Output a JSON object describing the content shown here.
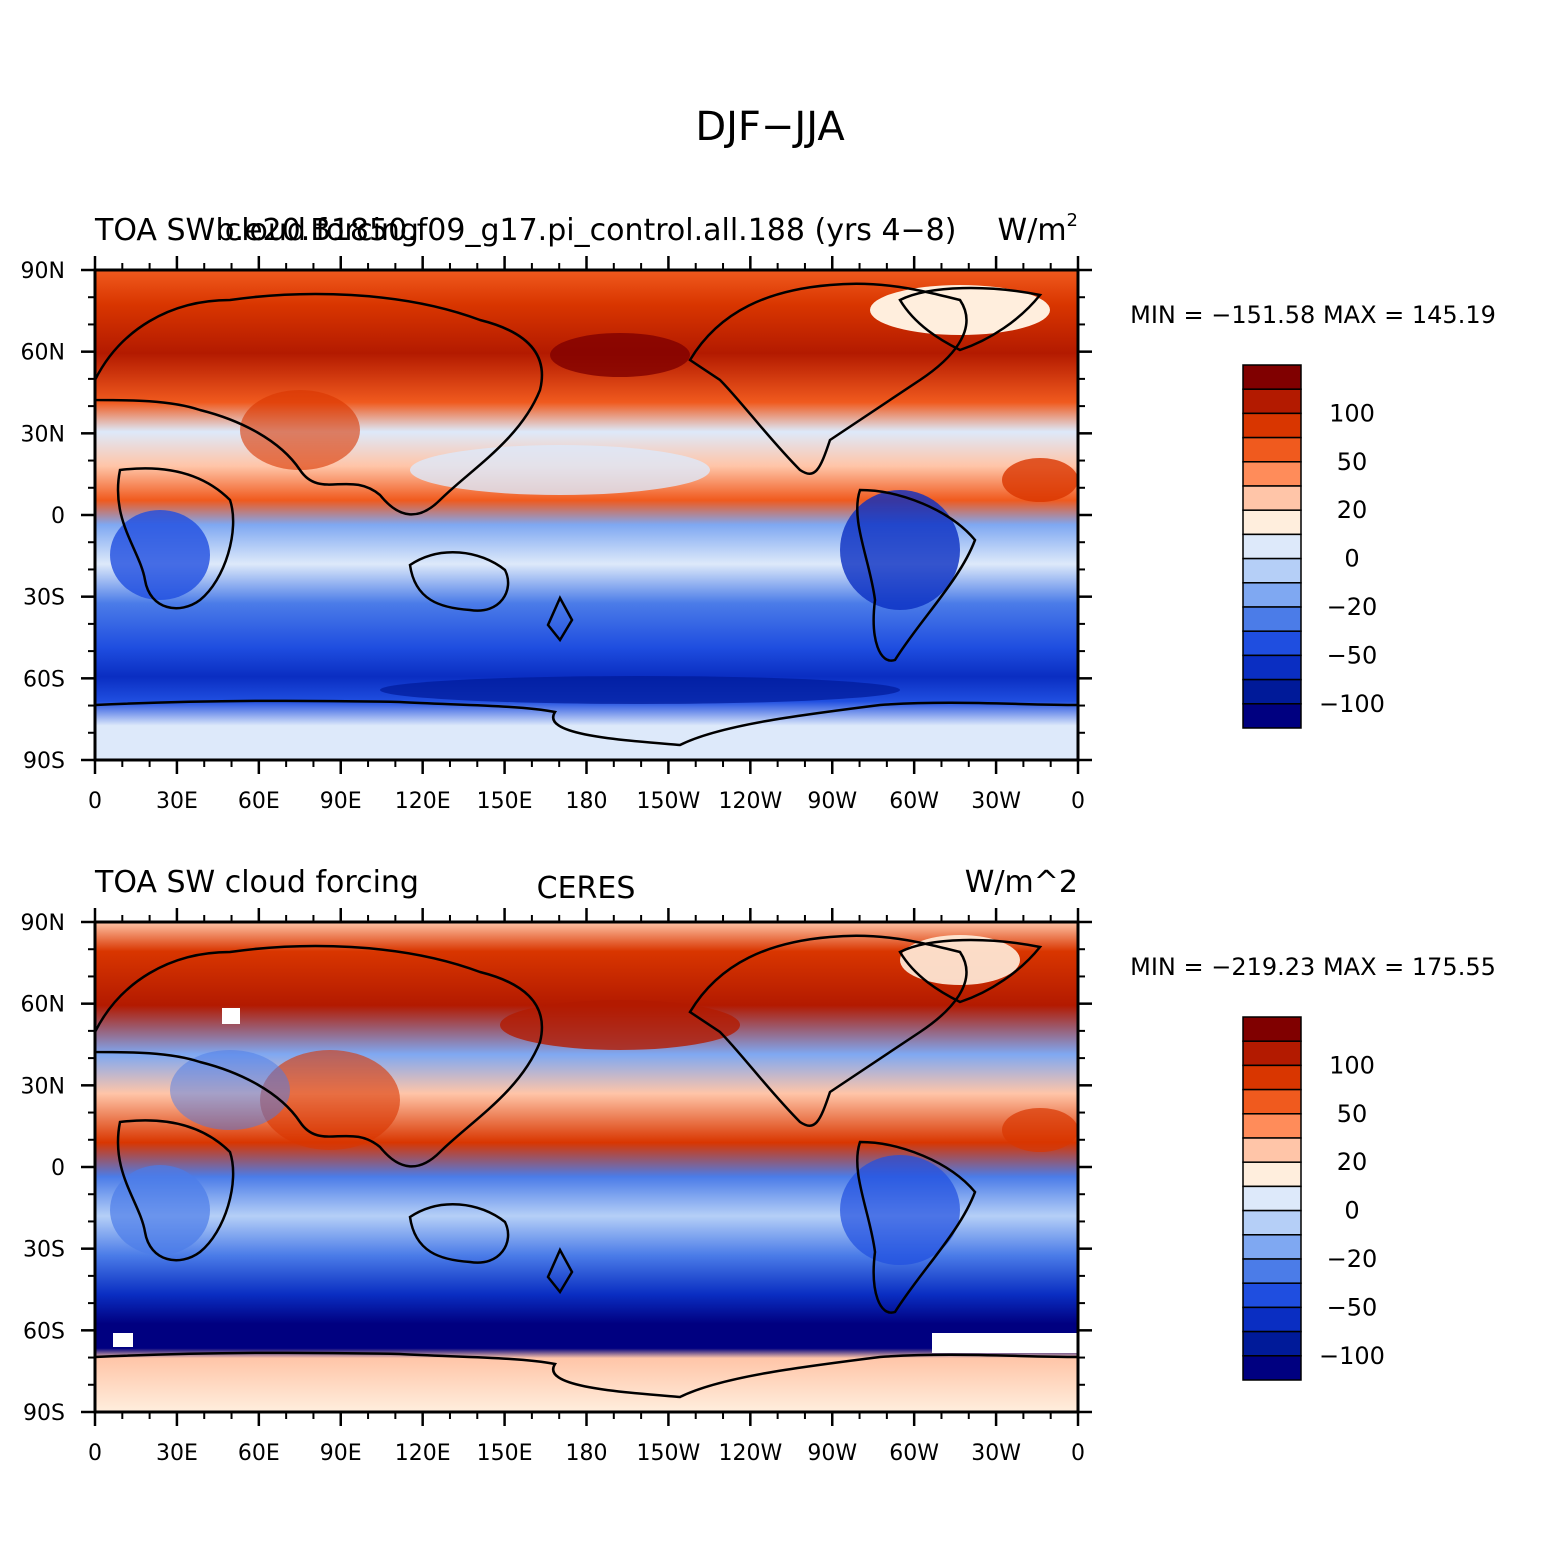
{
  "title": "DJF−JJA",
  "panels": [
    {
      "id": "model",
      "left_label": "TOA SW cloud forcing",
      "center_label": "b.e20.B1850.f09_g17.pi_control.all.188 (yrs 4−8)",
      "right_label": "W/m",
      "right_label_sup": "2",
      "minmax": "MIN = −151.58  MAX = 145.19"
    },
    {
      "id": "obs",
      "left_label": "TOA SW cloud forcing",
      "center_label": "CERES",
      "right_label": "W/m^2",
      "right_label_sup": "",
      "minmax": "MIN = −219.23  MAX = 175.55"
    }
  ],
  "lat_labels": [
    "90N",
    "60N",
    "30N",
    "0",
    "30S",
    "60S",
    "90S"
  ],
  "lon_labels": [
    "0",
    "30E",
    "60E",
    "90E",
    "120E",
    "150E",
    "180",
    "150W",
    "120W",
    "90W",
    "60W",
    "30W",
    "0"
  ],
  "colorbar": {
    "colors": [
      "#800000",
      "#b31a00",
      "#d93600",
      "#f05a1e",
      "#ff8c5a",
      "#ffc5a8",
      "#ffeedd",
      "#dde9fa",
      "#b5cff7",
      "#7fa8f2",
      "#4b7ce8",
      "#1f4ee0",
      "#0a2ec2",
      "#001a99",
      "#000080"
    ],
    "labels": [
      {
        "text": "100",
        "after_box": 2
      },
      {
        "text": "50",
        "after_box": 4
      },
      {
        "text": "20",
        "after_box": 6
      },
      {
        "text": "0",
        "after_box": 8
      },
      {
        "text": "−20",
        "after_box": 10
      },
      {
        "text": "−50",
        "after_box": 12
      },
      {
        "text": "−100",
        "after_box": 14
      }
    ]
  },
  "legend_colors": {
    "pos_strong": "#b31a00",
    "pos_mid": "#f05a1e",
    "pos_weak": "#ffc5a8",
    "neutral": "#ffeedd",
    "neg_weak": "#dde9fa",
    "neg_mid": "#4b7ce8",
    "neg_strong": "#001a99"
  }
}
